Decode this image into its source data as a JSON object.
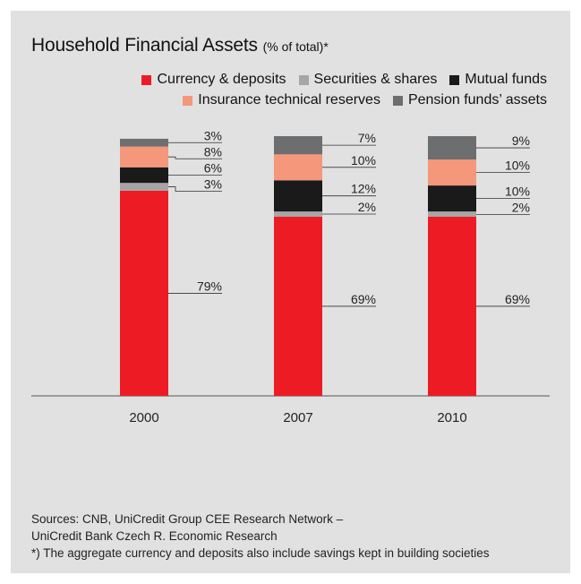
{
  "chart_data": {
    "type": "bar",
    "stacked": true,
    "title": "Household Financial Assets",
    "subtitle": "(% of total)*",
    "categories": [
      "2000",
      "2007",
      "2010"
    ],
    "series": [
      {
        "name": "Currency & deposits",
        "color": "#ed1c24",
        "values": [
          79,
          69,
          69
        ],
        "labels": [
          "79%",
          "69%",
          "69%"
        ]
      },
      {
        "name": "Securities & shares",
        "color": "#a6a6a6",
        "values": [
          3,
          2,
          2
        ],
        "labels": [
          "3%",
          "2%",
          "2%"
        ]
      },
      {
        "name": "Mutual funds",
        "color": "#1a1a1a",
        "values": [
          6,
          12,
          10
        ],
        "labels": [
          "6%",
          "12%",
          "10%"
        ]
      },
      {
        "name": "Insurance technical reserves",
        "color": "#f5977a",
        "values": [
          8,
          10,
          10
        ],
        "labels": [
          "8%",
          "10%",
          "10%"
        ]
      },
      {
        "name": "Pension funds’ assets",
        "color": "#6d6e70",
        "values": [
          3,
          7,
          9
        ],
        "labels": [
          "3%",
          "7%",
          "9%"
        ]
      }
    ],
    "ylim": [
      0,
      100
    ],
    "grid": false,
    "legend_position": "top-right"
  },
  "legend_rows": [
    [
      0,
      1,
      2
    ],
    [
      3,
      4
    ]
  ],
  "sources": [
    "Sources: CNB, UniCredit Group CEE Research Network –",
    "UniCredit Bank Czech R. Economic Research",
    "*) The aggregate currency and deposits also include savings kept in building societies"
  ]
}
